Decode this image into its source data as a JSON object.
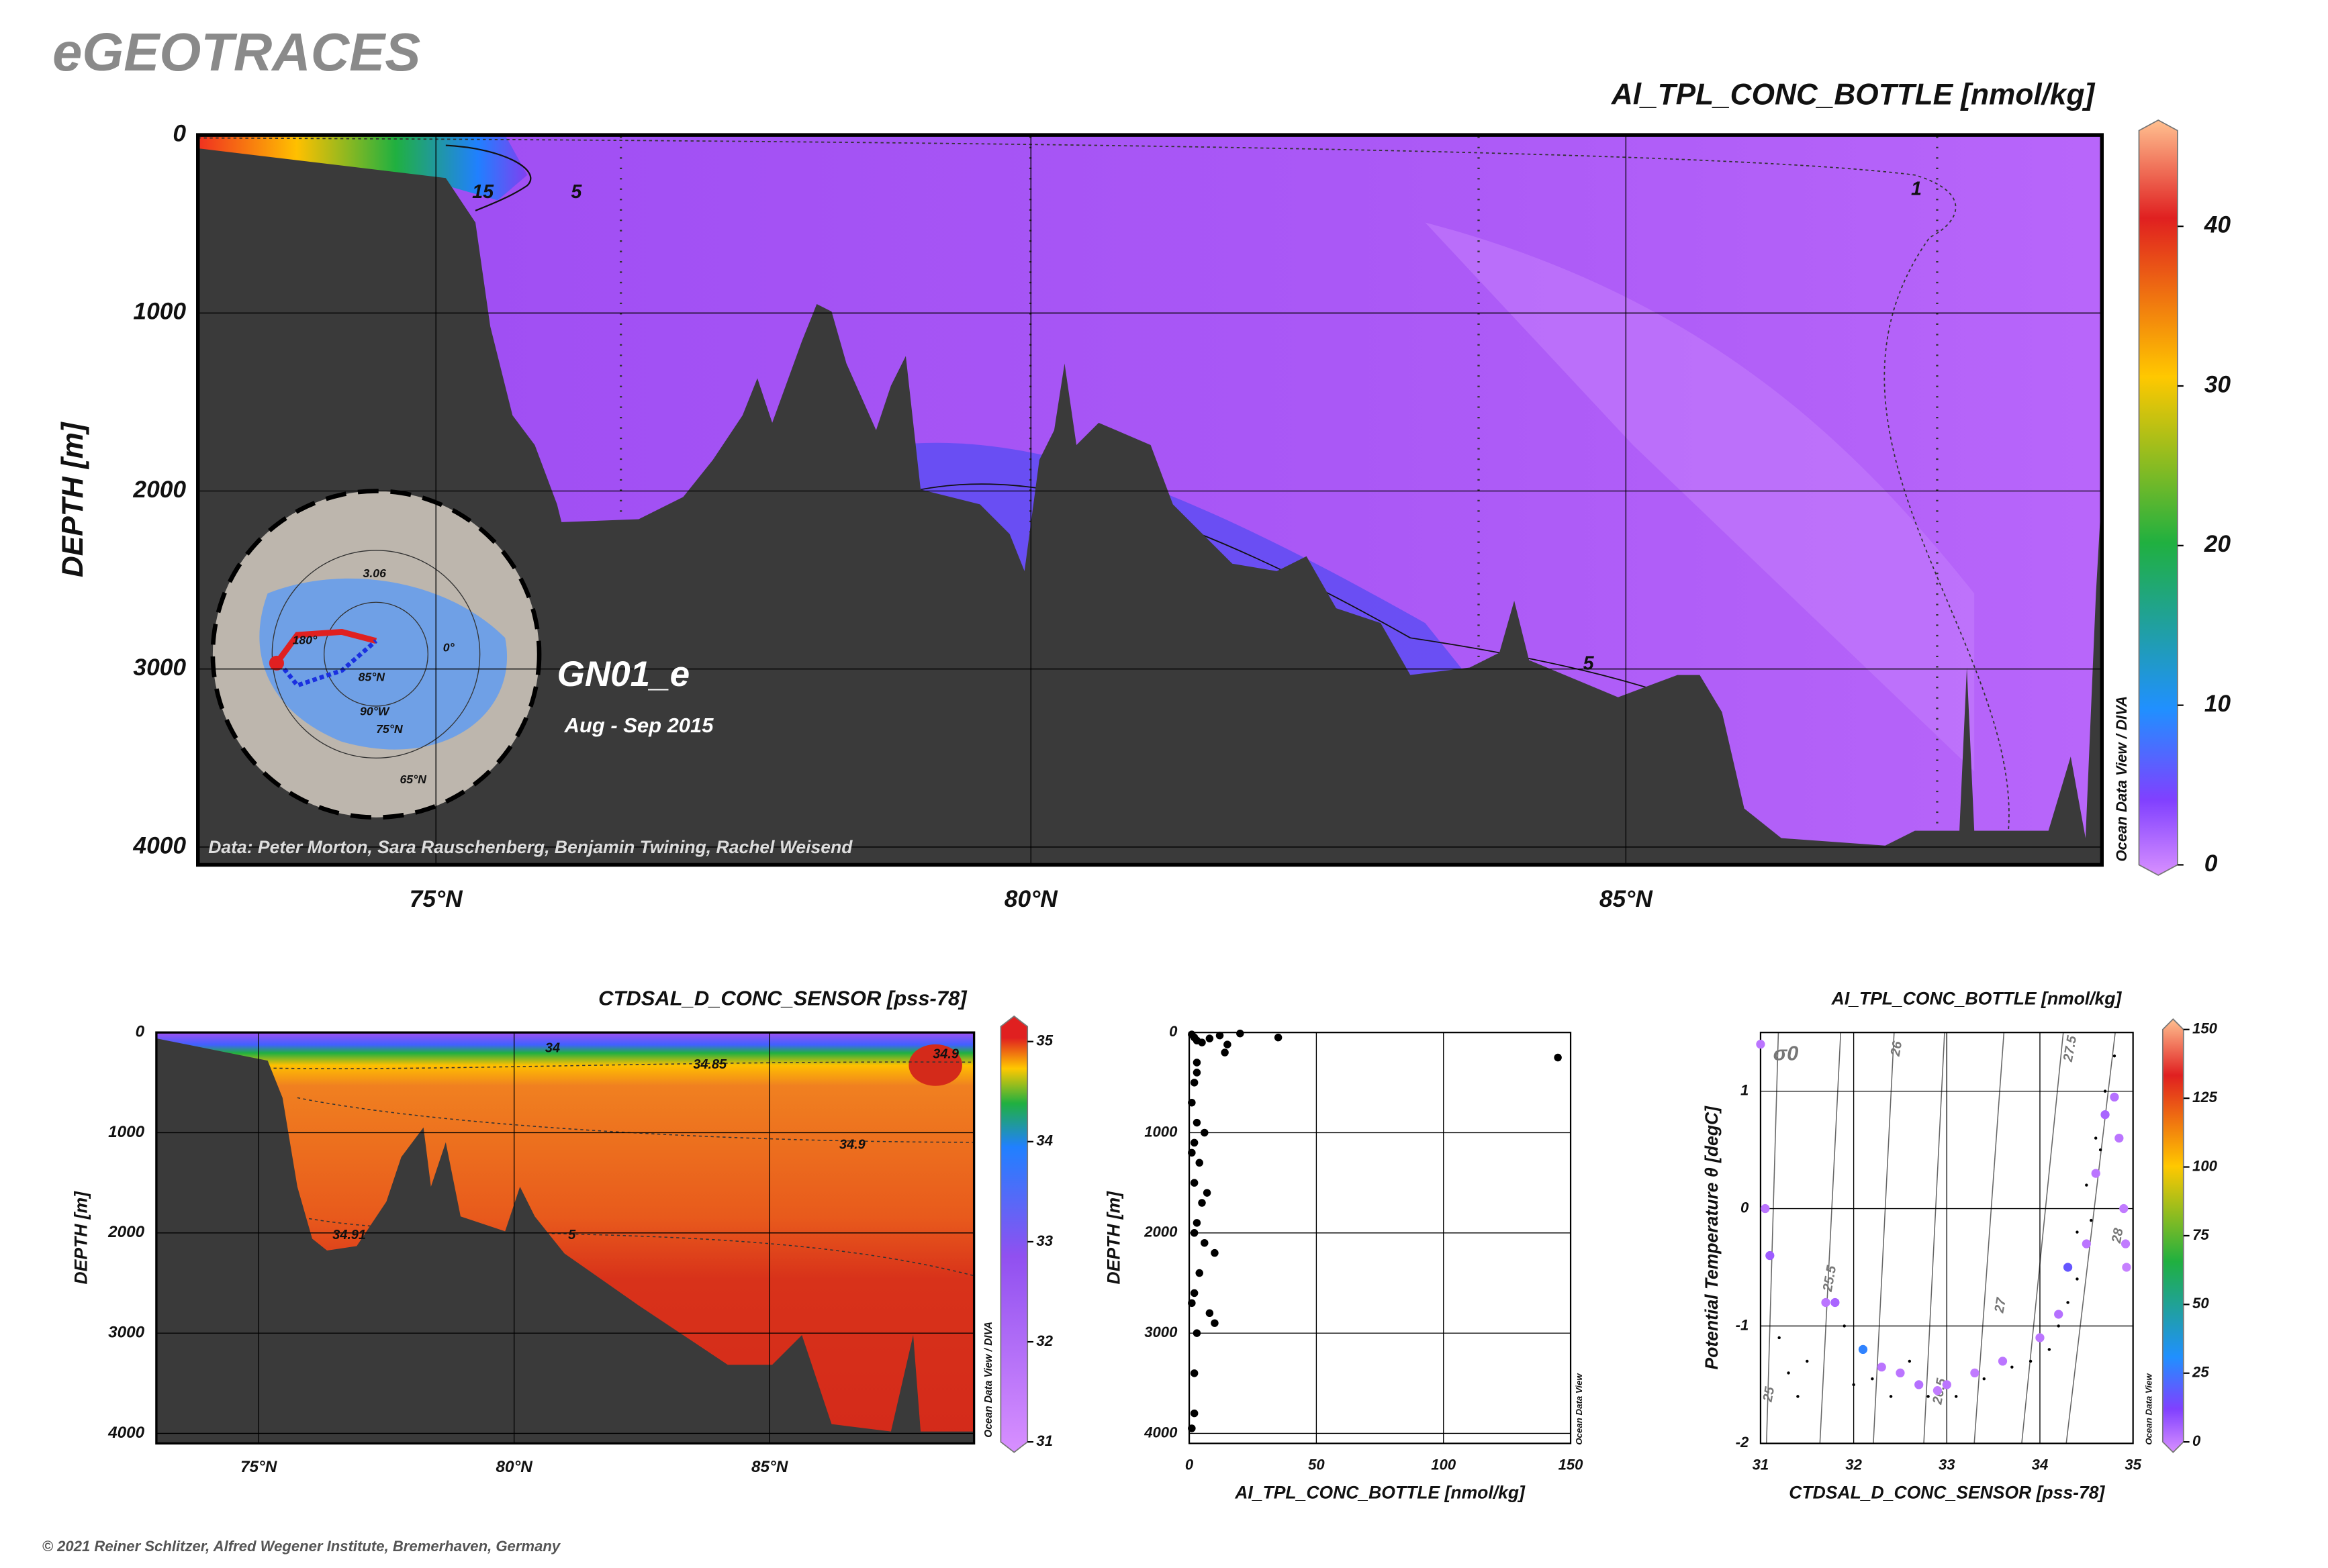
{
  "header": {
    "title": "eGEOTRACES",
    "footer": "© 2021 Reiner Schlitzer, Alfred Wegener Institute, Bremerhaven, Germany"
  },
  "chart_data": [
    {
      "type": "section",
      "title": "Al_TPL_CONC_BOTTLE [nmol/kg]",
      "ylabel": "DEPTH [m]",
      "xlim": [
        73,
        89
      ],
      "xticks": [
        {
          "value": 75,
          "label": "75°N"
        },
        {
          "value": 80,
          "label": "80°N"
        },
        {
          "value": 85,
          "label": "85°N"
        }
      ],
      "ylim": [
        0,
        4100
      ],
      "yticks": [
        0,
        1000,
        2000,
        3000,
        4000
      ],
      "yreverse": true,
      "grid": true,
      "colorbar": {
        "lim": [
          0,
          46
        ],
        "ticks": [
          0,
          10,
          20,
          30,
          40
        ]
      },
      "annotations": [
        "GN01_e",
        "Aug - Sep 2015",
        "Data: Peter Morton, Sara Rauschenberg, Benjamin Twining, Rachel Weisend",
        "Ocean Data View / DIVA"
      ],
      "contour_labels": [
        "15",
        "5",
        "1",
        "5"
      ],
      "map_labels": [
        "3.06",
        "180°",
        "0°",
        "85°N",
        "90°W",
        "75°N",
        "65°N"
      ]
    },
    {
      "type": "section",
      "title": "CTDSAL_D_CONC_SENSOR [pss-78]",
      "ylabel": "DEPTH [m]",
      "xlim": [
        73,
        89
      ],
      "xticks": [
        {
          "value": 75,
          "label": "75°N"
        },
        {
          "value": 80,
          "label": "80°N"
        },
        {
          "value": 85,
          "label": "85°N"
        }
      ],
      "ylim": [
        0,
        4100
      ],
      "yticks": [
        0,
        1000,
        2000,
        3000,
        4000
      ],
      "yreverse": true,
      "grid": true,
      "colorbar": {
        "lim": [
          31,
          35.15
        ],
        "ticks": [
          31,
          32,
          33,
          34,
          35
        ]
      },
      "annotations": [
        "Ocean Data View / DIVA"
      ],
      "contour_labels": [
        "34",
        "34.85",
        "34.9",
        "34.9",
        "34.91",
        "5"
      ]
    },
    {
      "type": "scatter",
      "xlabel": "AI_TPL_CONC_BOTTLE [nmol/kg]",
      "ylabel": "DEPTH [m]",
      "xlim": [
        0,
        150
      ],
      "xticks": [
        0,
        50,
        100,
        150
      ],
      "ylim": [
        0,
        4100
      ],
      "yticks": [
        0,
        1000,
        2000,
        3000,
        4000
      ],
      "yreverse": true,
      "grid": true,
      "annotations": [
        "Ocean Data View"
      ],
      "color": "#000000",
      "x": [
        1,
        2,
        3,
        5,
        8,
        12,
        15,
        20,
        14,
        35,
        145,
        3,
        2,
        1,
        3,
        2,
        4,
        2,
        5,
        3,
        6,
        10,
        4,
        2,
        8,
        10,
        3,
        2,
        2,
        1,
        3,
        6,
        1,
        7,
        2,
        1
      ],
      "values": [
        20,
        50,
        80,
        100,
        60,
        30,
        120,
        10,
        200,
        50,
        250,
        300,
        500,
        700,
        900,
        1100,
        1300,
        1500,
        1700,
        1900,
        2100,
        2200,
        2400,
        2600,
        2800,
        2900,
        3000,
        3400,
        3800,
        3950,
        400,
        1000,
        1200,
        1600,
        2000,
        2700
      ]
    },
    {
      "type": "ts",
      "title": "AI_TPL_CONC_BOTTLE [nmol/kg]",
      "xlabel": "CTDSAL_D_CONC_SENSOR [pss-78]",
      "ylabel": "Potential Temperature θ [degC]",
      "xlim": [
        31,
        35
      ],
      "xticks": [
        31,
        32,
        33,
        34,
        35
      ],
      "ylim": [
        -2,
        1.5
      ],
      "yticks": [
        -2,
        -1,
        0,
        1
      ],
      "grid": true,
      "colorbar": {
        "lim": [
          0,
          150
        ],
        "ticks": [
          0,
          25,
          50,
          75,
          100,
          125,
          150
        ]
      },
      "annotations": [
        "Ocean Data View"
      ],
      "isopycnal_labels": [
        "σ0",
        "25",
        "25.5",
        "26",
        "26.5",
        "27",
        "27.5",
        "28"
      ],
      "series": [
        {
          "color": "#000000",
          "x": [
            31.2,
            31.5,
            31.9,
            32.2,
            32.4,
            32.6,
            32.8,
            33.1,
            33.4,
            33.7,
            34.1,
            34.3,
            34.4,
            34.5,
            34.6,
            34.7,
            34.8,
            34.4,
            34.2,
            31.4,
            31.3,
            32.0,
            33.9,
            34.55,
            34.65
          ],
          "values": [
            -1.1,
            -1.3,
            -1.0,
            -1.45,
            -1.6,
            -1.3,
            -1.6,
            -1.6,
            -1.45,
            -1.35,
            -1.2,
            -0.8,
            -0.2,
            0.2,
            0.6,
            1.0,
            1.3,
            -0.6,
            -1.0,
            -1.6,
            -1.4,
            -1.5,
            -1.3,
            -0.1,
            0.5
          ]
        },
        {
          "x": [
            31.05,
            31.1,
            31.7,
            31.8,
            32.1,
            32.3,
            32.5,
            32.7,
            32.9,
            33.0,
            33.3,
            33.6,
            34.0,
            34.2,
            34.3,
            34.5,
            34.6,
            34.7,
            34.8,
            34.85,
            34.9,
            34.92,
            34.93,
            31
          ],
          "values": [
            0.0,
            -0.4,
            -0.8,
            -0.8,
            -1.2,
            -1.35,
            -1.4,
            -1.5,
            -1.55,
            -1.5,
            -1.4,
            -1.3,
            -1.1,
            -0.9,
            -0.5,
            -0.3,
            0.3,
            0.8,
            0.95,
            0.6,
            0.0,
            -0.3,
            -0.5,
            1.4
          ],
          "z": [
            5,
            10,
            5,
            8,
            30,
            5,
            5,
            6,
            4,
            5,
            4,
            5,
            5,
            6,
            20,
            5,
            5,
            8,
            6,
            5,
            4,
            4,
            3,
            5
          ]
        }
      ]
    }
  ]
}
